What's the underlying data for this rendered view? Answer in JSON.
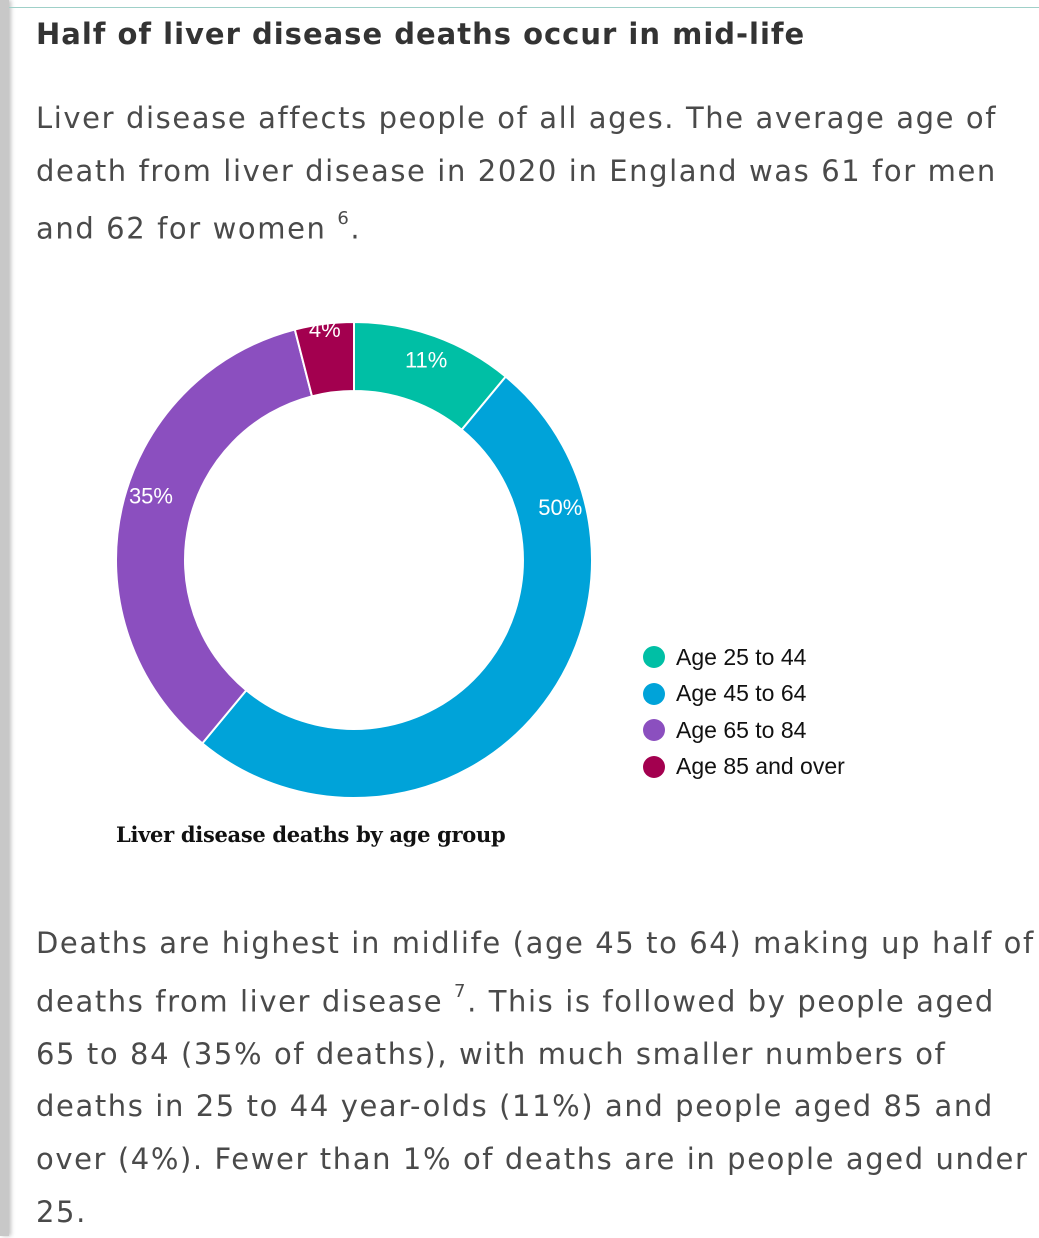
{
  "heading": "Half of liver disease deaths occur in mid-life",
  "intro": {
    "line1": "Liver disease affects people of all ages. The average age of",
    "line2": "death from liver disease in 2020 in England was 61 for men",
    "line3_text": "and 62 for women ",
    "line3_ref": "6",
    "line3_end": "."
  },
  "outro": {
    "line1": "Deaths are highest in midlife (age 45 to 64) making up half of",
    "line2_text": "deaths from liver disease ",
    "line2_ref": "7",
    "line2_end": ". This is followed by people aged",
    "line3": "65 to 84 (35% of deaths), with much smaller numbers of",
    "line4": "deaths in 25 to 44 year-olds (11%) and people aged 85 and",
    "line5": "over (4%). Fewer than 1% of deaths are in people aged under",
    "line6": "25."
  },
  "chart_data": {
    "type": "pie",
    "subtype": "donut",
    "title": "Liver disease deaths by age group",
    "categories": [
      "Age 25 to 44",
      "Age 45 to 64",
      "Age 65 to 84",
      "Age 85 and over"
    ],
    "values": [
      11,
      50,
      35,
      4
    ],
    "labels": [
      "11%",
      "50%",
      "35%",
      "4%"
    ],
    "colors": [
      "#00bfa5",
      "#00a3d9",
      "#8b4fbf",
      "#a3004f"
    ],
    "legend_position": "right"
  }
}
